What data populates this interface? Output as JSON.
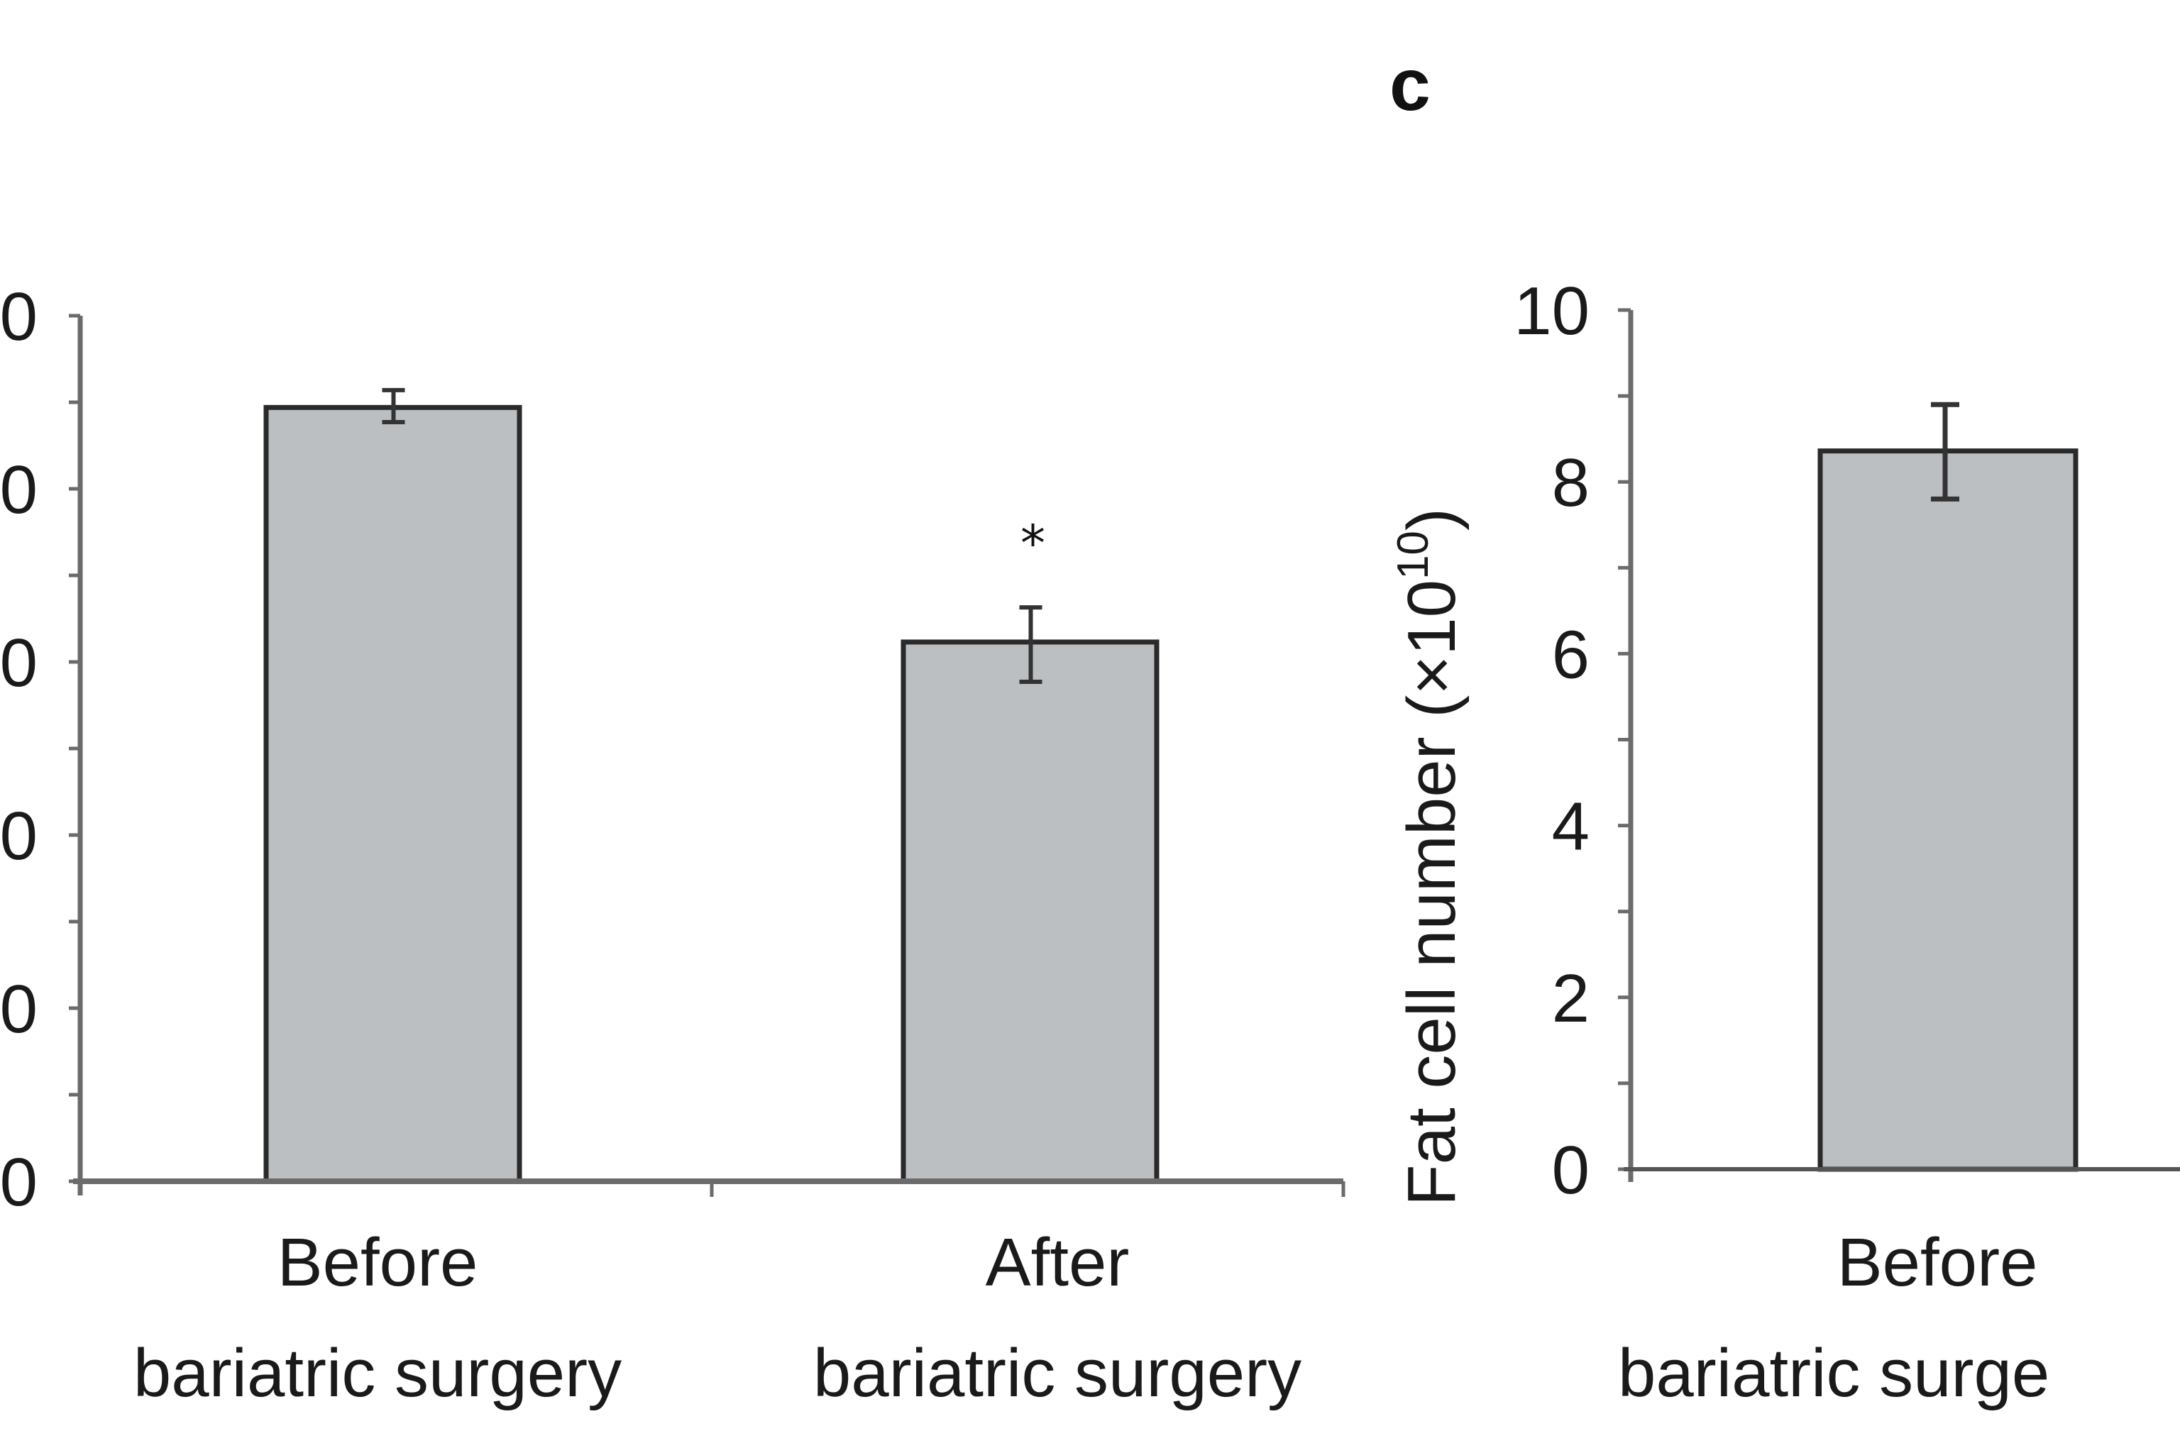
{
  "colors": {
    "bar_fill": "#bcbfc2",
    "bar_stroke": "#2a2a2a",
    "axis": "#6b6b6b",
    "text": "#1a1a1a"
  },
  "chart_data": [
    {
      "type": "bar",
      "panel": "",
      "title": "",
      "xlabel": "",
      "ylabel": "",
      "ylim": [
        0,
        1
      ],
      "value_units": "fraction of y-axis range (tick numbers cropped)",
      "y_tick_labels_visible": [
        "0",
        "0",
        "0",
        "0",
        "0",
        "0"
      ],
      "categories": [
        [
          "Before",
          "bariatric surgery"
        ],
        [
          "After",
          "bariatric surgery"
        ]
      ],
      "values": [
        0.894,
        0.623
      ],
      "error_high": [
        0.914,
        0.663
      ],
      "error_low": [
        0.877,
        0.577
      ],
      "annotations": [
        {
          "category_index": 1,
          "text": "*"
        }
      ]
    },
    {
      "type": "bar",
      "panel": "c",
      "title": "",
      "xlabel": "",
      "ylabel": "Fat cell number (×10",
      "ylabel_superscript": "10",
      "ylabel_suffix": ")",
      "ylim": [
        0,
        10
      ],
      "y_ticks": [
        "0",
        "2",
        "4",
        "6",
        "8",
        "10"
      ],
      "y_tick_values": [
        0,
        2,
        4,
        6,
        8,
        10
      ],
      "categories": [
        [
          "Before",
          "bariatric surge"
        ]
      ],
      "values": [
        8.36
      ],
      "error_high": [
        8.9
      ],
      "error_low": [
        7.8
      ],
      "annotations": []
    }
  ]
}
